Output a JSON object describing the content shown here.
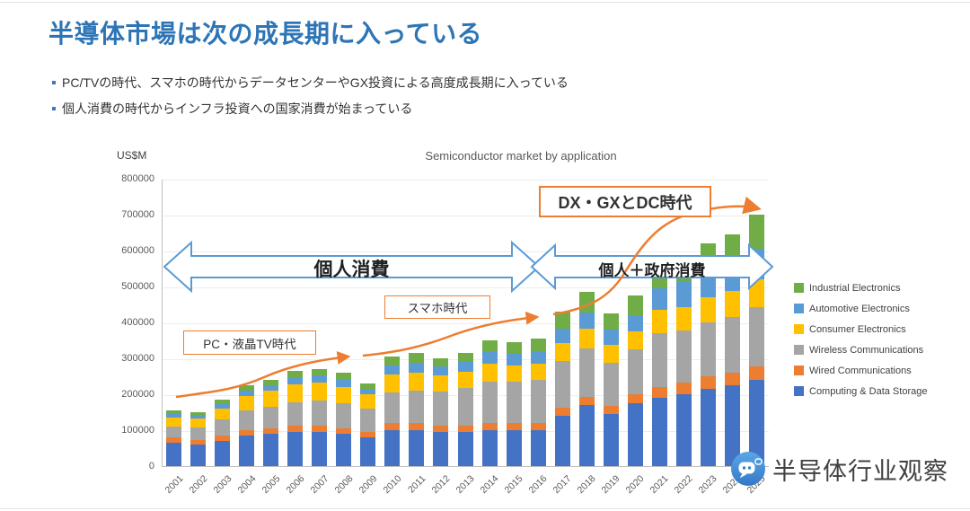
{
  "slide": {
    "title": "半導体市場は次の成長期に入っている",
    "bullets": [
      "PC/TVの時代、スマホの時代からデータセンターやGX投資による高度成長期に入っている",
      "個人消費の時代からインフラ投資への国家消費が始まっている"
    ]
  },
  "chart_data": {
    "type": "bar",
    "stacked": true,
    "title": "Semiconductor market by application",
    "xlabel": "",
    "ylabel": "US$M",
    "ylim": [
      0,
      800000
    ],
    "ytick_step": 100000,
    "grid": true,
    "legend_position": "right",
    "categories": [
      2001,
      2002,
      2003,
      2004,
      2005,
      2006,
      2007,
      2008,
      2009,
      2010,
      2011,
      2012,
      2013,
      2014,
      2015,
      2016,
      2017,
      2018,
      2019,
      2020,
      2021,
      2022,
      2023,
      2024,
      2025
    ],
    "series": [
      {
        "name": "Industrial Electronics",
        "color": "#70AD47",
        "values": [
          10000,
          8000,
          12000,
          15000,
          15000,
          19000,
          18000,
          19000,
          15000,
          25000,
          27000,
          22000,
          25000,
          33000,
          33000,
          35000,
          48000,
          57000,
          46000,
          58000,
          60000,
          67000,
          75000,
          80000,
          94000
        ]
      },
      {
        "name": "Automotive Electronics",
        "color": "#5B9BD5",
        "values": [
          10000,
          10000,
          14000,
          15000,
          15000,
          19000,
          20000,
          20000,
          15000,
          25000,
          28000,
          25000,
          27000,
          32000,
          32000,
          35000,
          40000,
          45000,
          42000,
          42000,
          60000,
          70000,
          75000,
          78000,
          85000
        ]
      },
      {
        "name": "Consumer Electronics",
        "color": "#FFC000",
        "values": [
          25000,
          24000,
          30000,
          40000,
          45000,
          50000,
          50000,
          45000,
          40000,
          50000,
          50000,
          45000,
          45000,
          50000,
          45000,
          45000,
          50000,
          55000,
          50000,
          50000,
          65000,
          65000,
          70000,
          72000,
          78000
        ]
      },
      {
        "name": "Wireless Communications",
        "color": "#A5A5A5",
        "values": [
          30000,
          35000,
          45000,
          55000,
          60000,
          65000,
          70000,
          70000,
          65000,
          85000,
          90000,
          95000,
          105000,
          115000,
          115000,
          120000,
          130000,
          135000,
          120000,
          125000,
          150000,
          145000,
          150000,
          155000,
          165000
        ]
      },
      {
        "name": "Wired Communications",
        "color": "#ED7D31",
        "values": [
          15000,
          13000,
          14000,
          15000,
          15000,
          17000,
          17000,
          16000,
          15000,
          20000,
          20000,
          18000,
          18000,
          20000,
          20000,
          20000,
          22000,
          23000,
          22000,
          25000,
          30000,
          33000,
          35000,
          35000,
          38000
        ]
      },
      {
        "name": "Computing & Data Storage",
        "color": "#4472C4",
        "values": [
          65000,
          60000,
          70000,
          85000,
          90000,
          95000,
          95000,
          90000,
          80000,
          100000,
          100000,
          95000,
          95000,
          100000,
          100000,
          100000,
          140000,
          170000,
          145000,
          175000,
          190000,
          200000,
          215000,
          225000,
          240000
        ]
      }
    ]
  },
  "annotations": {
    "era_boxes": [
      {
        "label": "PC・液晶TV時代"
      },
      {
        "label": "スマホ時代"
      },
      {
        "label": "DX・GXとDC時代"
      }
    ],
    "consumption_arrows": [
      {
        "label": "個人消費"
      },
      {
        "label": "個人＋政府消費"
      }
    ]
  },
  "watermark": {
    "text": "半导体行业观察"
  },
  "colors": {
    "title": "#2E75B6",
    "era_box_border": "#ED7D31",
    "growth_curve": "#ED7D31",
    "consumption_arrow_outline": "#5B9BD5"
  }
}
